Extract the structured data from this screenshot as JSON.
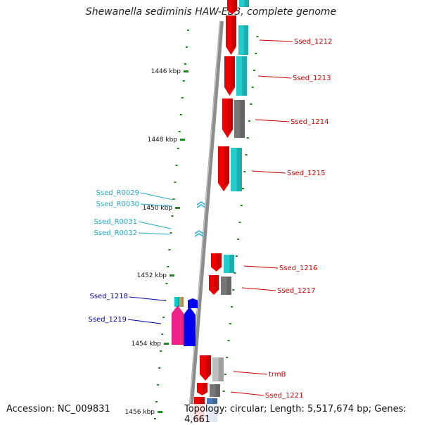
{
  "title": "Shewanella sediminis HAW-EB3, complete genome",
  "footer": {
    "accession": "Accession: NC_009831",
    "summary": "Topology: circular; Length: 5,517,674 bp; Genes: 4,661"
  },
  "colors": {
    "backbone": "#8c8c8c",
    "tick": "#1d8a1d",
    "forward_cds": "#ee0000",
    "cyan": "#22cccc",
    "gray": "#777777",
    "light_gray": "#bdbdbd",
    "rna": "#33b5e5",
    "label_red": "#cc0000",
    "label_cyan": "#22aacc",
    "label_blue": "#000099"
  },
  "ticks": [
    {
      "label": "1446 kbp"
    },
    {
      "label": "1448 kbp"
    },
    {
      "label": "1450 kbp"
    },
    {
      "label": "1452 kbp"
    },
    {
      "label": "1454 kbp"
    },
    {
      "label": "1456 kbp"
    }
  ],
  "genes_right": [
    {
      "label": "Ssed_1212"
    },
    {
      "label": "Ssed_1213"
    },
    {
      "label": "Ssed_1214"
    },
    {
      "label": "Ssed_1215"
    },
    {
      "label": "Ssed_1216"
    },
    {
      "label": "Ssed_1217"
    },
    {
      "label": "trmB"
    },
    {
      "label": "Ssed_1221"
    }
  ],
  "rnas_left": [
    {
      "label": "Ssed_R0029"
    },
    {
      "label": "Ssed_R0030"
    },
    {
      "label": "Ssed_R0031"
    },
    {
      "label": "Ssed_R0032"
    }
  ],
  "genes_left": [
    {
      "label": "Ssed_1218"
    },
    {
      "label": "Ssed_1219"
    }
  ]
}
